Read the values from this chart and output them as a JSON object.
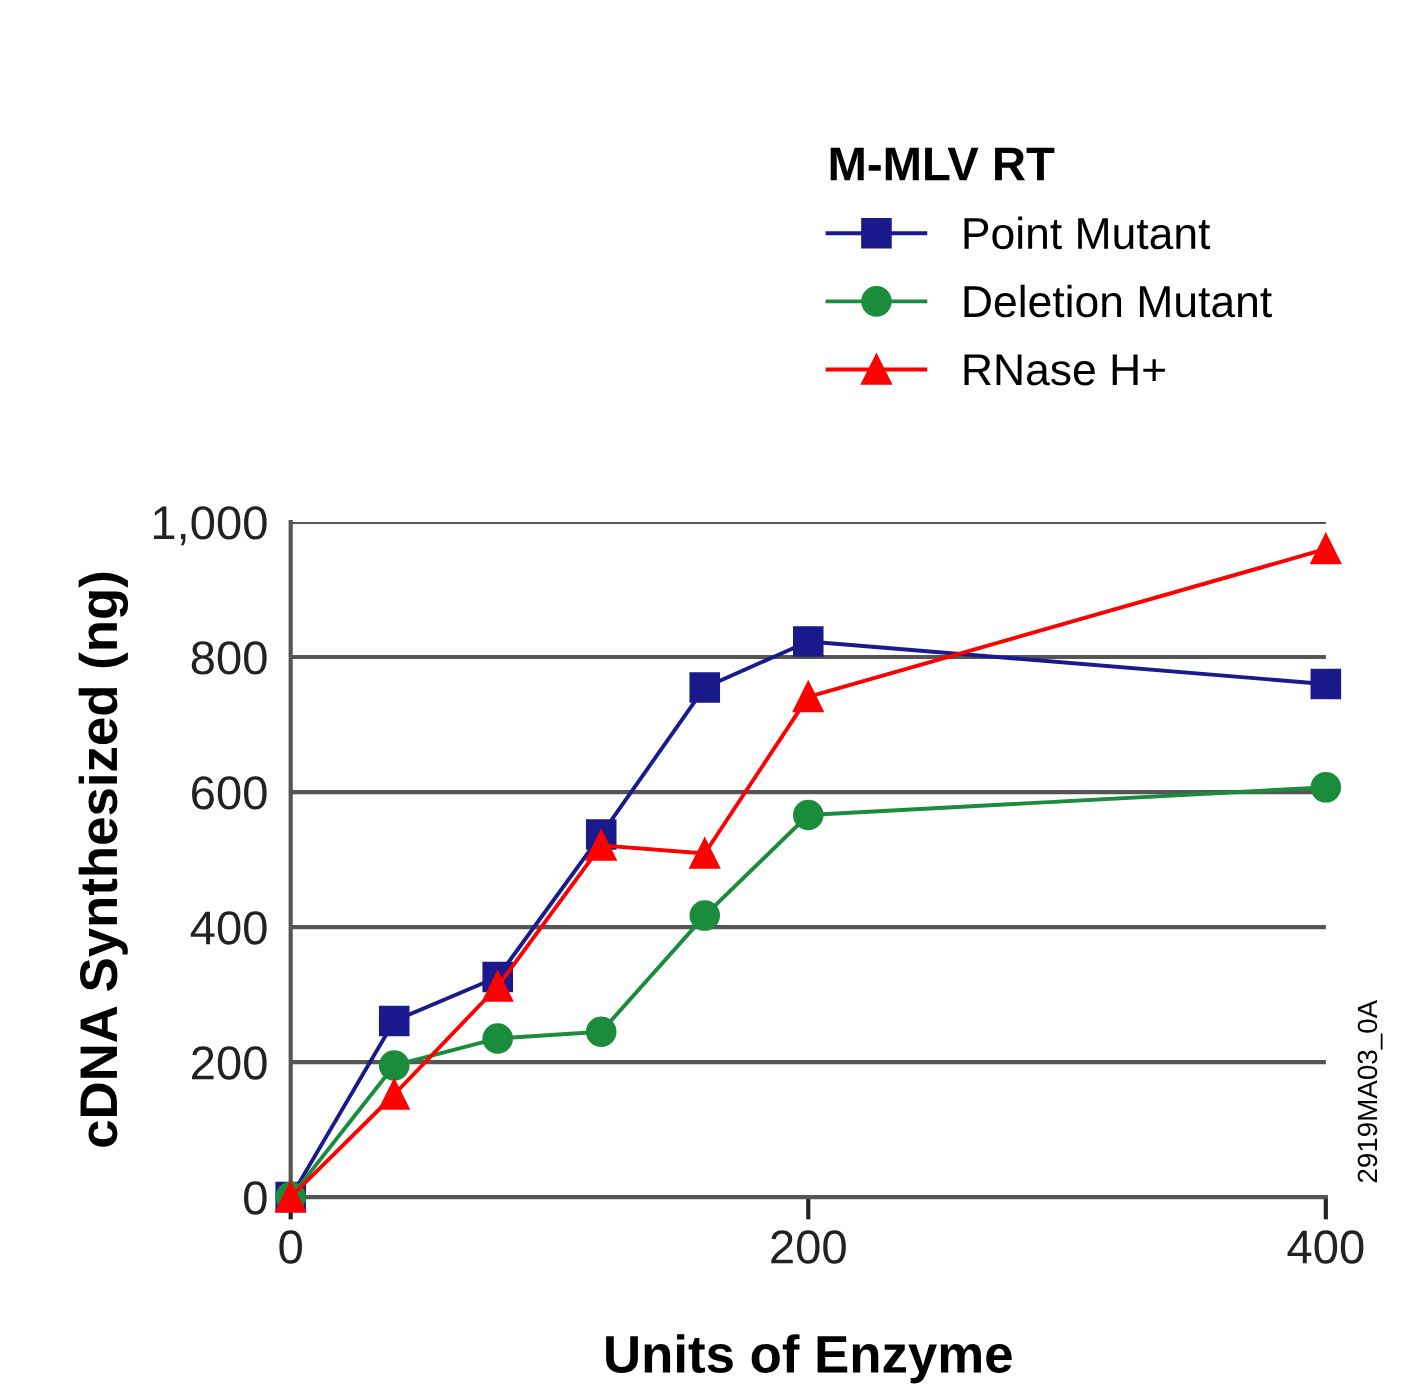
{
  "chart_data": {
    "type": "line",
    "xlabel": "Units of Enzyme",
    "ylabel": "cDNA Synthesized (ng)",
    "legend_title": "M-MLV RT",
    "x": [
      0,
      40,
      80,
      120,
      160,
      200,
      400
    ],
    "series": [
      {
        "name": "Point Mutant",
        "color": "#1a1a8c",
        "marker": "square",
        "values": [
          0,
          261,
          326,
          537,
          755,
          823,
          760
        ]
      },
      {
        "name": "Deletion Mutant",
        "color": "#1a8c3c",
        "marker": "circle",
        "values": [
          0,
          195,
          235,
          245,
          417,
          566,
          607
        ]
      },
      {
        "name": "RNase H+",
        "color": "#ff0000",
        "marker": "triangle",
        "values": [
          0,
          152,
          312,
          521,
          509,
          741,
          960
        ]
      }
    ],
    "xlim": [
      0,
      400
    ],
    "xticks": [
      0,
      200,
      400
    ],
    "ylim": [
      0,
      1000
    ],
    "yticks": [
      0,
      200,
      400,
      600,
      800,
      {
        "value": 1000,
        "label": "1,000"
      }
    ],
    "grid": "y",
    "legend": "top right",
    "annotations": [
      "2919MA03_0A"
    ]
  }
}
